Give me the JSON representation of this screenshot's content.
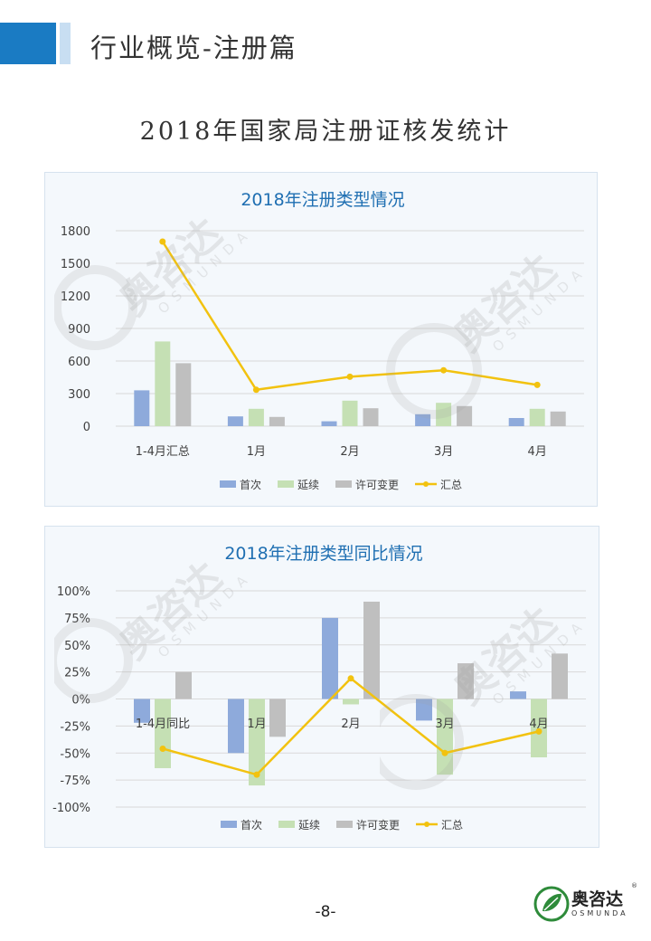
{
  "header": {
    "title": "行业概览-注册篇"
  },
  "main_title": "2018年国家局注册证核发统计",
  "page_number": "-8-",
  "logo": {
    "name": "奥咨达",
    "sub": "OSMUNDA",
    "mark": "®"
  },
  "colors": {
    "首次": "#8eaadb",
    "延续": "#c5e0b4",
    "许可变更": "#bfbfbf",
    "汇总": "#f2c20f",
    "title": "#1f6fb2",
    "grid": "#d9d9d9"
  },
  "chart_data": [
    {
      "type": "bar",
      "title": "2018年注册类型情况",
      "categories": [
        "1-4月汇总",
        "1月",
        "2月",
        "3月",
        "4月"
      ],
      "ylim": [
        0,
        1800
      ],
      "yticks": [
        "0",
        "300",
        "600",
        "900",
        "1200",
        "1500",
        "1800"
      ],
      "ytick_values": [
        0,
        300,
        600,
        900,
        1200,
        1500,
        1800
      ],
      "grid": true,
      "legend": "bottom",
      "series": [
        {
          "name": "首次",
          "kind": "bar",
          "values": [
            330,
            90,
            45,
            110,
            75
          ]
        },
        {
          "name": "延续",
          "kind": "bar",
          "values": [
            780,
            160,
            235,
            215,
            160
          ]
        },
        {
          "name": "许可变更",
          "kind": "bar",
          "values": [
            580,
            85,
            165,
            185,
            135
          ]
        },
        {
          "name": "汇总",
          "kind": "line",
          "values": [
            1700,
            335,
            455,
            515,
            380
          ]
        }
      ]
    },
    {
      "type": "bar",
      "title": "2018年注册类型同比情况",
      "categories": [
        "1-4月同比",
        "1月",
        "2月",
        "3月",
        "4月"
      ],
      "ylim": [
        -1,
        1
      ],
      "yticks": [
        "-100%",
        "-75%",
        "-50%",
        "-25%",
        "0%",
        "25%",
        "50%",
        "75%",
        "100%"
      ],
      "ytick_values": [
        -1,
        -0.75,
        -0.5,
        -0.25,
        0,
        0.25,
        0.5,
        0.75,
        1
      ],
      "grid": true,
      "legend": "bottom",
      "series": [
        {
          "name": "首次",
          "kind": "bar",
          "values": [
            -0.22,
            -0.5,
            0.75,
            -0.2,
            0.07
          ]
        },
        {
          "name": "延续",
          "kind": "bar",
          "values": [
            -0.64,
            -0.8,
            -0.05,
            -0.7,
            -0.54
          ]
        },
        {
          "name": "许可变更",
          "kind": "bar",
          "values": [
            0.25,
            -0.35,
            0.9,
            0.33,
            0.42
          ]
        },
        {
          "name": "汇总",
          "kind": "line",
          "values": [
            -0.46,
            -0.7,
            0.19,
            -0.5,
            -0.3
          ]
        }
      ]
    }
  ]
}
